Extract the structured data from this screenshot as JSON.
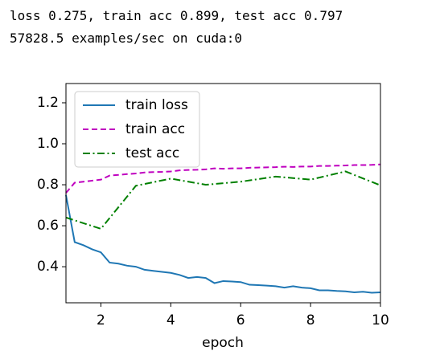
{
  "header": [
    "loss 0.275, train acc 0.899, test acc 0.797",
    "57828.5 examples/sec on cuda:0"
  ],
  "chart_data": {
    "type": "line",
    "xlabel": "epoch",
    "xlim": [
      1,
      10
    ],
    "ylim": [
      0.224,
      1.294
    ],
    "xticks": [
      2,
      4,
      6,
      8,
      10
    ],
    "yticks": [
      0.4,
      0.6,
      0.8,
      {
        "value": 1,
        "label": "1.0"
      },
      1.2
    ],
    "legend": "upper left",
    "grid": false,
    "series": [
      {
        "name": "train loss",
        "color": "#1f77b4",
        "dash": "solid",
        "x": [
          1,
          1.25,
          1.5,
          1.75,
          2,
          2.25,
          2.5,
          2.75,
          3,
          3.25,
          3.5,
          3.75,
          4,
          4.25,
          4.5,
          4.75,
          5,
          5.25,
          5.5,
          5.75,
          6,
          6.25,
          6.5,
          6.75,
          7,
          7.25,
          7.5,
          7.75,
          8,
          8.25,
          8.5,
          8.75,
          9,
          9.25,
          9.5,
          9.75,
          10
        ],
        "values": [
          0.75,
          0.52,
          0.505,
          0.485,
          0.47,
          0.42,
          0.415,
          0.405,
          0.4,
          0.385,
          0.38,
          0.375,
          0.37,
          0.36,
          0.345,
          0.35,
          0.345,
          0.32,
          0.33,
          0.328,
          0.325,
          0.312,
          0.31,
          0.308,
          0.305,
          0.298,
          0.305,
          0.298,
          0.295,
          0.285,
          0.285,
          0.282,
          0.28,
          0.275,
          0.278,
          0.273,
          0.275
        ]
      },
      {
        "name": "train acc",
        "color": "#bf00bf",
        "dash": "dashed",
        "x": [
          1,
          1.25,
          1.5,
          1.75,
          2,
          2.25,
          2.5,
          2.75,
          3,
          3.25,
          3.5,
          3.75,
          4,
          4.25,
          4.5,
          4.75,
          5,
          5.25,
          5.5,
          5.75,
          6,
          6.25,
          6.5,
          6.75,
          7,
          7.25,
          7.5,
          7.75,
          8,
          8.25,
          8.5,
          8.75,
          9,
          9.25,
          9.5,
          9.75,
          10
        ],
        "values": [
          0.76,
          0.81,
          0.815,
          0.82,
          0.825,
          0.845,
          0.848,
          0.852,
          0.855,
          0.86,
          0.862,
          0.863,
          0.865,
          0.87,
          0.872,
          0.873,
          0.875,
          0.88,
          0.878,
          0.88,
          0.88,
          0.883,
          0.884,
          0.885,
          0.886,
          0.888,
          0.887,
          0.889,
          0.889,
          0.892,
          0.892,
          0.893,
          0.894,
          0.896,
          0.896,
          0.897,
          0.899
        ]
      },
      {
        "name": "test acc",
        "color": "#008000",
        "dash": "dashdot",
        "x": [
          1,
          2,
          3,
          4,
          5,
          6,
          7,
          8,
          9,
          10
        ],
        "values": [
          0.64,
          0.585,
          0.795,
          0.83,
          0.8,
          0.815,
          0.84,
          0.825,
          0.865,
          0.797
        ]
      }
    ]
  }
}
